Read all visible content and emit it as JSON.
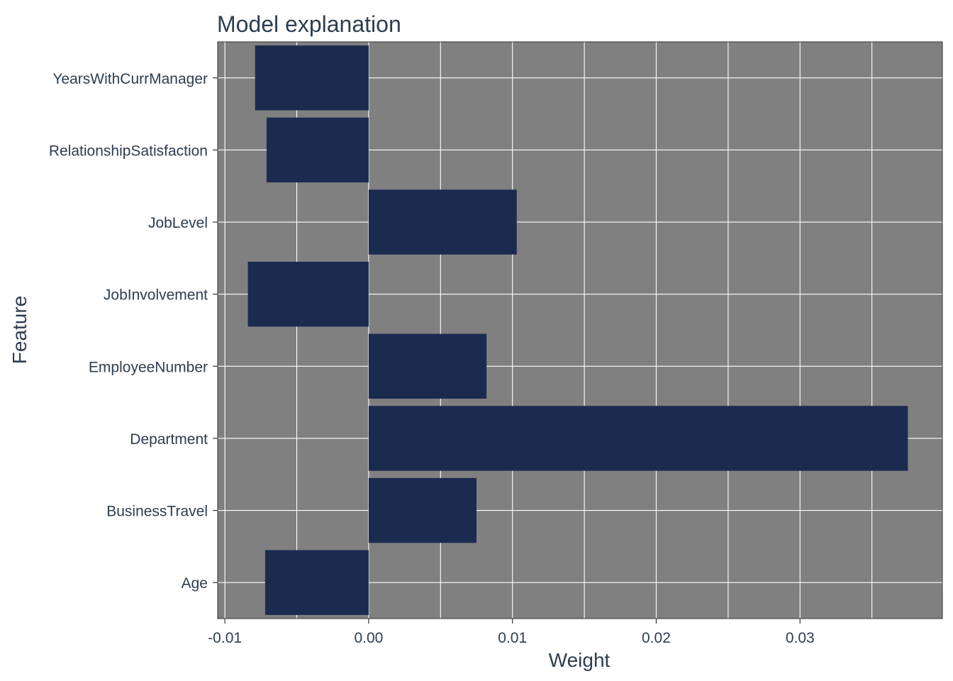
{
  "chart_data": {
    "type": "bar",
    "orientation": "horizontal",
    "title": "Model explanation",
    "xlabel": "Weight",
    "ylabel": "Feature",
    "categories": [
      "YearsWithCurrManager",
      "RelationshipSatisfaction",
      "JobLevel",
      "JobInvolvement",
      "EmployeeNumber",
      "Department",
      "BusinessTravel",
      "Age"
    ],
    "values": [
      -0.0079,
      -0.0071,
      0.0103,
      -0.0084,
      0.0082,
      0.0375,
      0.0075,
      -0.0072
    ],
    "xlim": [
      -0.0105,
      0.0399
    ],
    "xticks": [
      -0.01,
      0.0,
      0.01,
      0.02,
      0.03
    ],
    "xtick_labels": [
      "-0.01",
      "0.00",
      "0.01",
      "0.02",
      "0.03"
    ],
    "grid": true,
    "legend": "none",
    "colors": {
      "bar": "#1b2b50",
      "panel": "#808080",
      "grid": "#ffffff",
      "text": "#2d3e50"
    }
  }
}
